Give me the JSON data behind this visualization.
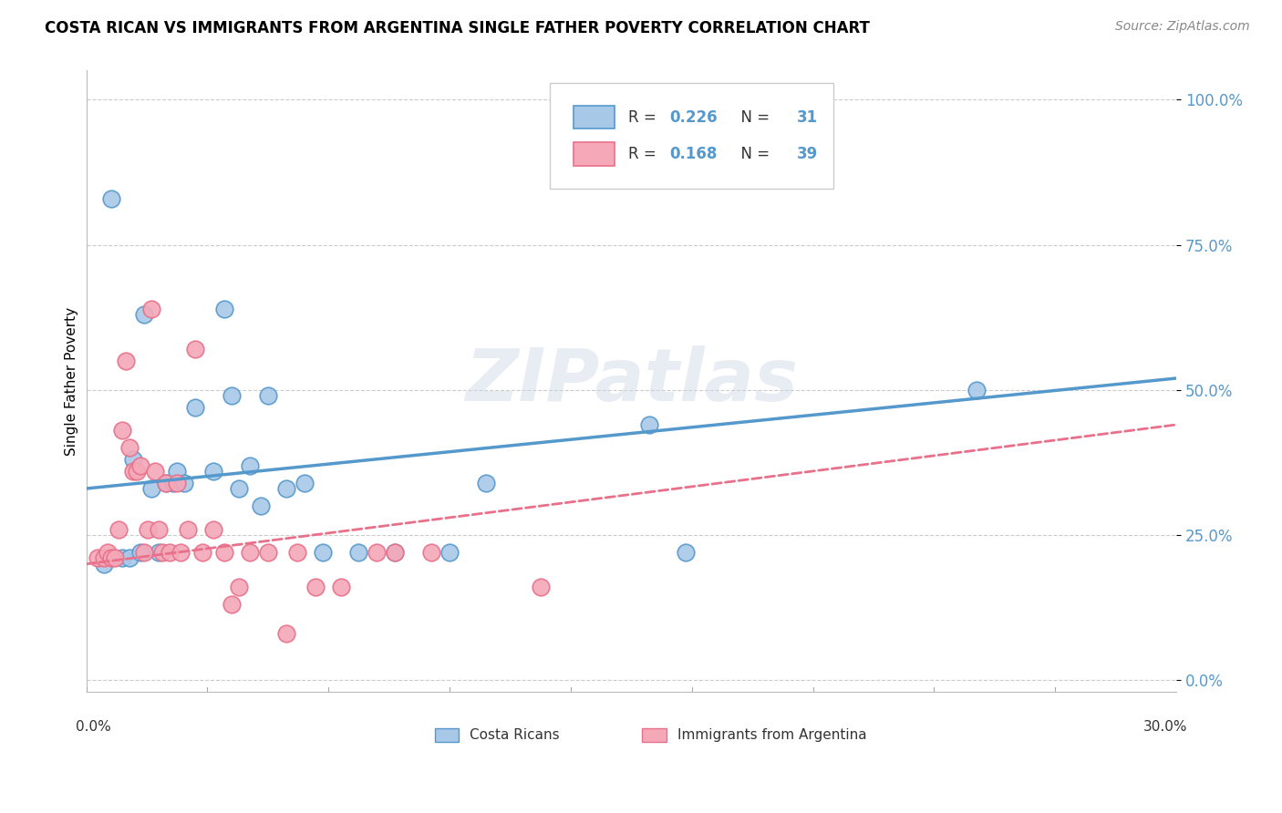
{
  "title": "COSTA RICAN VS IMMIGRANTS FROM ARGENTINA SINGLE FATHER POVERTY CORRELATION CHART",
  "source": "Source: ZipAtlas.com",
  "ylabel": "Single Father Poverty",
  "ytick_vals": [
    0.0,
    0.25,
    0.5,
    0.75,
    1.0
  ],
  "ytick_labels": [
    "0.0%",
    "25.0%",
    "50.0%",
    "75.0%",
    "100.0%"
  ],
  "xlim": [
    0.0,
    0.3
  ],
  "ylim": [
    -0.02,
    1.05
  ],
  "color_cr": "#a8c8e8",
  "color_arg": "#f4a8b8",
  "color_cr_line": "#5599cc",
  "color_arg_line": "#e8708a",
  "watermark": "ZIPatlas",
  "cr_points_x": [
    0.005,
    0.007,
    0.01,
    0.012,
    0.013,
    0.015,
    0.016,
    0.018,
    0.02,
    0.022,
    0.024,
    0.025,
    0.027,
    0.03,
    0.035,
    0.038,
    0.04,
    0.042,
    0.045,
    0.048,
    0.05,
    0.055,
    0.06,
    0.065,
    0.075,
    0.085,
    0.1,
    0.11,
    0.155,
    0.165,
    0.245
  ],
  "cr_points_y": [
    0.2,
    0.83,
    0.21,
    0.21,
    0.38,
    0.22,
    0.63,
    0.33,
    0.22,
    0.34,
    0.34,
    0.36,
    0.34,
    0.47,
    0.36,
    0.64,
    0.49,
    0.33,
    0.37,
    0.3,
    0.49,
    0.33,
    0.34,
    0.22,
    0.22,
    0.22,
    0.22,
    0.34,
    0.44,
    0.22,
    0.5
  ],
  "arg_points_x": [
    0.003,
    0.005,
    0.006,
    0.007,
    0.008,
    0.009,
    0.01,
    0.011,
    0.012,
    0.013,
    0.014,
    0.015,
    0.016,
    0.017,
    0.018,
    0.019,
    0.02,
    0.021,
    0.022,
    0.023,
    0.025,
    0.026,
    0.028,
    0.03,
    0.032,
    0.035,
    0.038,
    0.04,
    0.042,
    0.045,
    0.05,
    0.055,
    0.058,
    0.063,
    0.07,
    0.08,
    0.085,
    0.095,
    0.125
  ],
  "arg_points_y": [
    0.21,
    0.21,
    0.22,
    0.21,
    0.21,
    0.26,
    0.43,
    0.55,
    0.4,
    0.36,
    0.36,
    0.37,
    0.22,
    0.26,
    0.64,
    0.36,
    0.26,
    0.22,
    0.34,
    0.22,
    0.34,
    0.22,
    0.26,
    0.57,
    0.22,
    0.26,
    0.22,
    0.13,
    0.16,
    0.22,
    0.22,
    0.08,
    0.22,
    0.16,
    0.16,
    0.22,
    0.22,
    0.22,
    0.16
  ],
  "cr_line_x": [
    0.0,
    0.3
  ],
  "cr_line_y": [
    0.33,
    0.52
  ],
  "arg_line_x": [
    0.0,
    0.3
  ],
  "arg_line_y": [
    0.2,
    0.44
  ]
}
